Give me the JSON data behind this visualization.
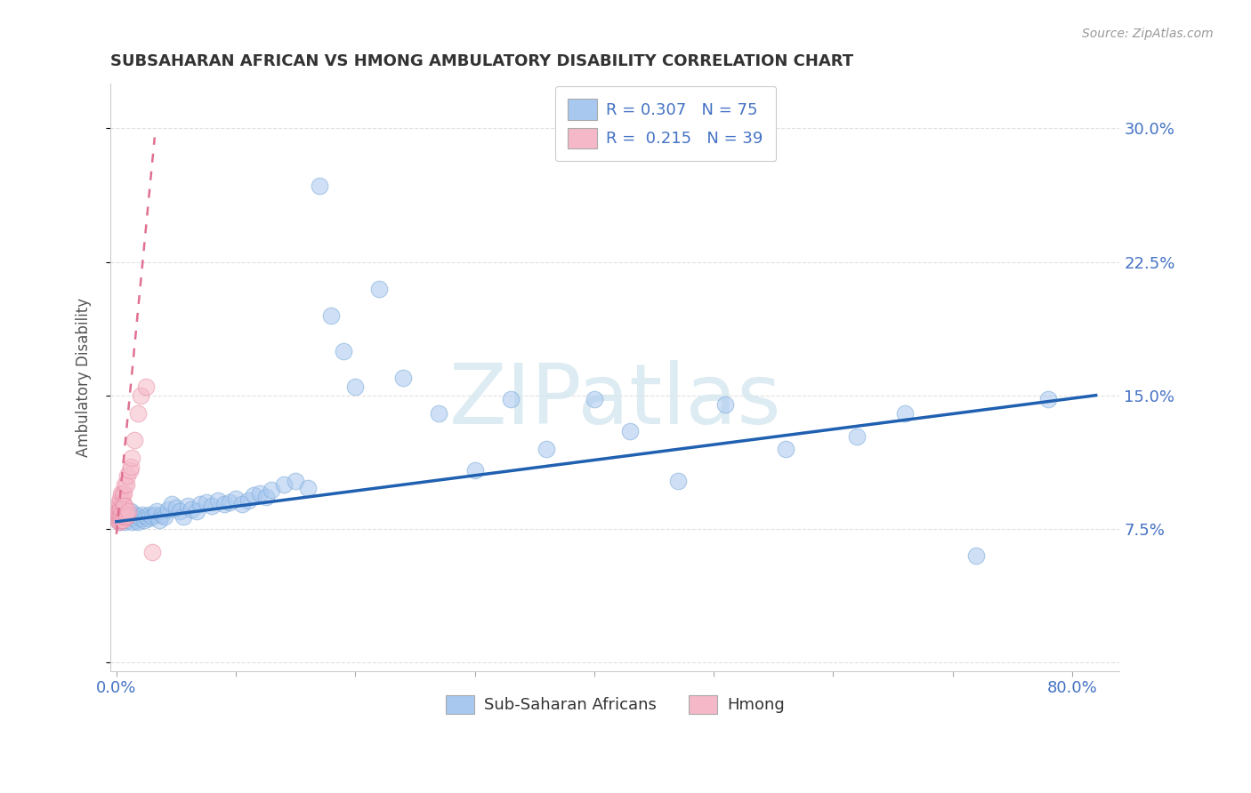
{
  "title": "SUBSAHARAN AFRICAN VS HMONG AMBULATORY DISABILITY CORRELATION CHART",
  "source": "Source: ZipAtlas.com",
  "ylabel_label": "Ambulatory Disability",
  "xlim": [
    -0.005,
    0.84
  ],
  "ylim": [
    -0.005,
    0.325
  ],
  "blue_R": "0.307",
  "blue_N": "75",
  "pink_R": "0.215",
  "pink_N": "39",
  "blue_color": "#a8c8f0",
  "blue_edge_color": "#7aaad8",
  "blue_line_color": "#2060b0",
  "pink_color": "#f5b8c8",
  "pink_edge_color": "#e890a8",
  "pink_line_color": "#e07090",
  "legend_label_blue": "Sub-Saharan Africans",
  "legend_label_pink": "Hmong",
  "watermark": "ZIPatlas",
  "grid_color": "#e0e0e0",
  "blue_scatter_x": [
    0.001,
    0.002,
    0.003,
    0.003,
    0.004,
    0.005,
    0.005,
    0.006,
    0.007,
    0.008,
    0.009,
    0.01,
    0.011,
    0.012,
    0.013,
    0.015,
    0.016,
    0.017,
    0.018,
    0.019,
    0.02,
    0.022,
    0.023,
    0.025,
    0.027,
    0.028,
    0.03,
    0.032,
    0.034,
    0.036,
    0.038,
    0.04,
    0.043,
    0.046,
    0.05,
    0.053,
    0.056,
    0.06,
    0.063,
    0.067,
    0.07,
    0.075,
    0.08,
    0.085,
    0.09,
    0.095,
    0.1,
    0.105,
    0.11,
    0.115,
    0.12,
    0.125,
    0.13,
    0.14,
    0.15,
    0.16,
    0.17,
    0.18,
    0.19,
    0.2,
    0.22,
    0.24,
    0.27,
    0.3,
    0.33,
    0.36,
    0.4,
    0.43,
    0.47,
    0.51,
    0.56,
    0.62,
    0.66,
    0.72,
    0.78
  ],
  "blue_scatter_y": [
    0.082,
    0.079,
    0.08,
    0.085,
    0.083,
    0.08,
    0.086,
    0.083,
    0.079,
    0.082,
    0.081,
    0.08,
    0.083,
    0.085,
    0.079,
    0.082,
    0.083,
    0.08,
    0.079,
    0.082,
    0.081,
    0.083,
    0.08,
    0.082,
    0.081,
    0.083,
    0.082,
    0.083,
    0.085,
    0.08,
    0.083,
    0.082,
    0.086,
    0.089,
    0.087,
    0.085,
    0.082,
    0.088,
    0.086,
    0.085,
    0.089,
    0.09,
    0.088,
    0.091,
    0.089,
    0.09,
    0.092,
    0.089,
    0.091,
    0.094,
    0.095,
    0.093,
    0.097,
    0.1,
    0.102,
    0.098,
    0.268,
    0.195,
    0.175,
    0.155,
    0.21,
    0.16,
    0.14,
    0.108,
    0.148,
    0.12,
    0.148,
    0.13,
    0.102,
    0.145,
    0.12,
    0.127,
    0.14,
    0.06,
    0.148
  ],
  "pink_scatter_x": [
    0.001,
    0.001,
    0.001,
    0.002,
    0.002,
    0.002,
    0.002,
    0.003,
    0.003,
    0.003,
    0.003,
    0.003,
    0.004,
    0.004,
    0.004,
    0.004,
    0.005,
    0.005,
    0.005,
    0.005,
    0.006,
    0.006,
    0.006,
    0.007,
    0.007,
    0.007,
    0.008,
    0.008,
    0.009,
    0.009,
    0.01,
    0.011,
    0.012,
    0.013,
    0.015,
    0.018,
    0.02,
    0.025,
    0.03
  ],
  "pink_scatter_y": [
    0.08,
    0.083,
    0.085,
    0.079,
    0.082,
    0.086,
    0.09,
    0.08,
    0.083,
    0.086,
    0.089,
    0.092,
    0.08,
    0.083,
    0.086,
    0.095,
    0.08,
    0.085,
    0.09,
    0.095,
    0.082,
    0.088,
    0.095,
    0.082,
    0.088,
    0.1,
    0.082,
    0.1,
    0.083,
    0.105,
    0.085,
    0.108,
    0.11,
    0.115,
    0.125,
    0.14,
    0.15,
    0.155,
    0.062
  ],
  "blue_line_x0": 0.0,
  "blue_line_x1": 0.82,
  "blue_line_y0": 0.079,
  "blue_line_y1": 0.15,
  "pink_line_x0": 0.0,
  "pink_line_x1": 0.032,
  "pink_line_y0": 0.072,
  "pink_line_y1": 0.295
}
